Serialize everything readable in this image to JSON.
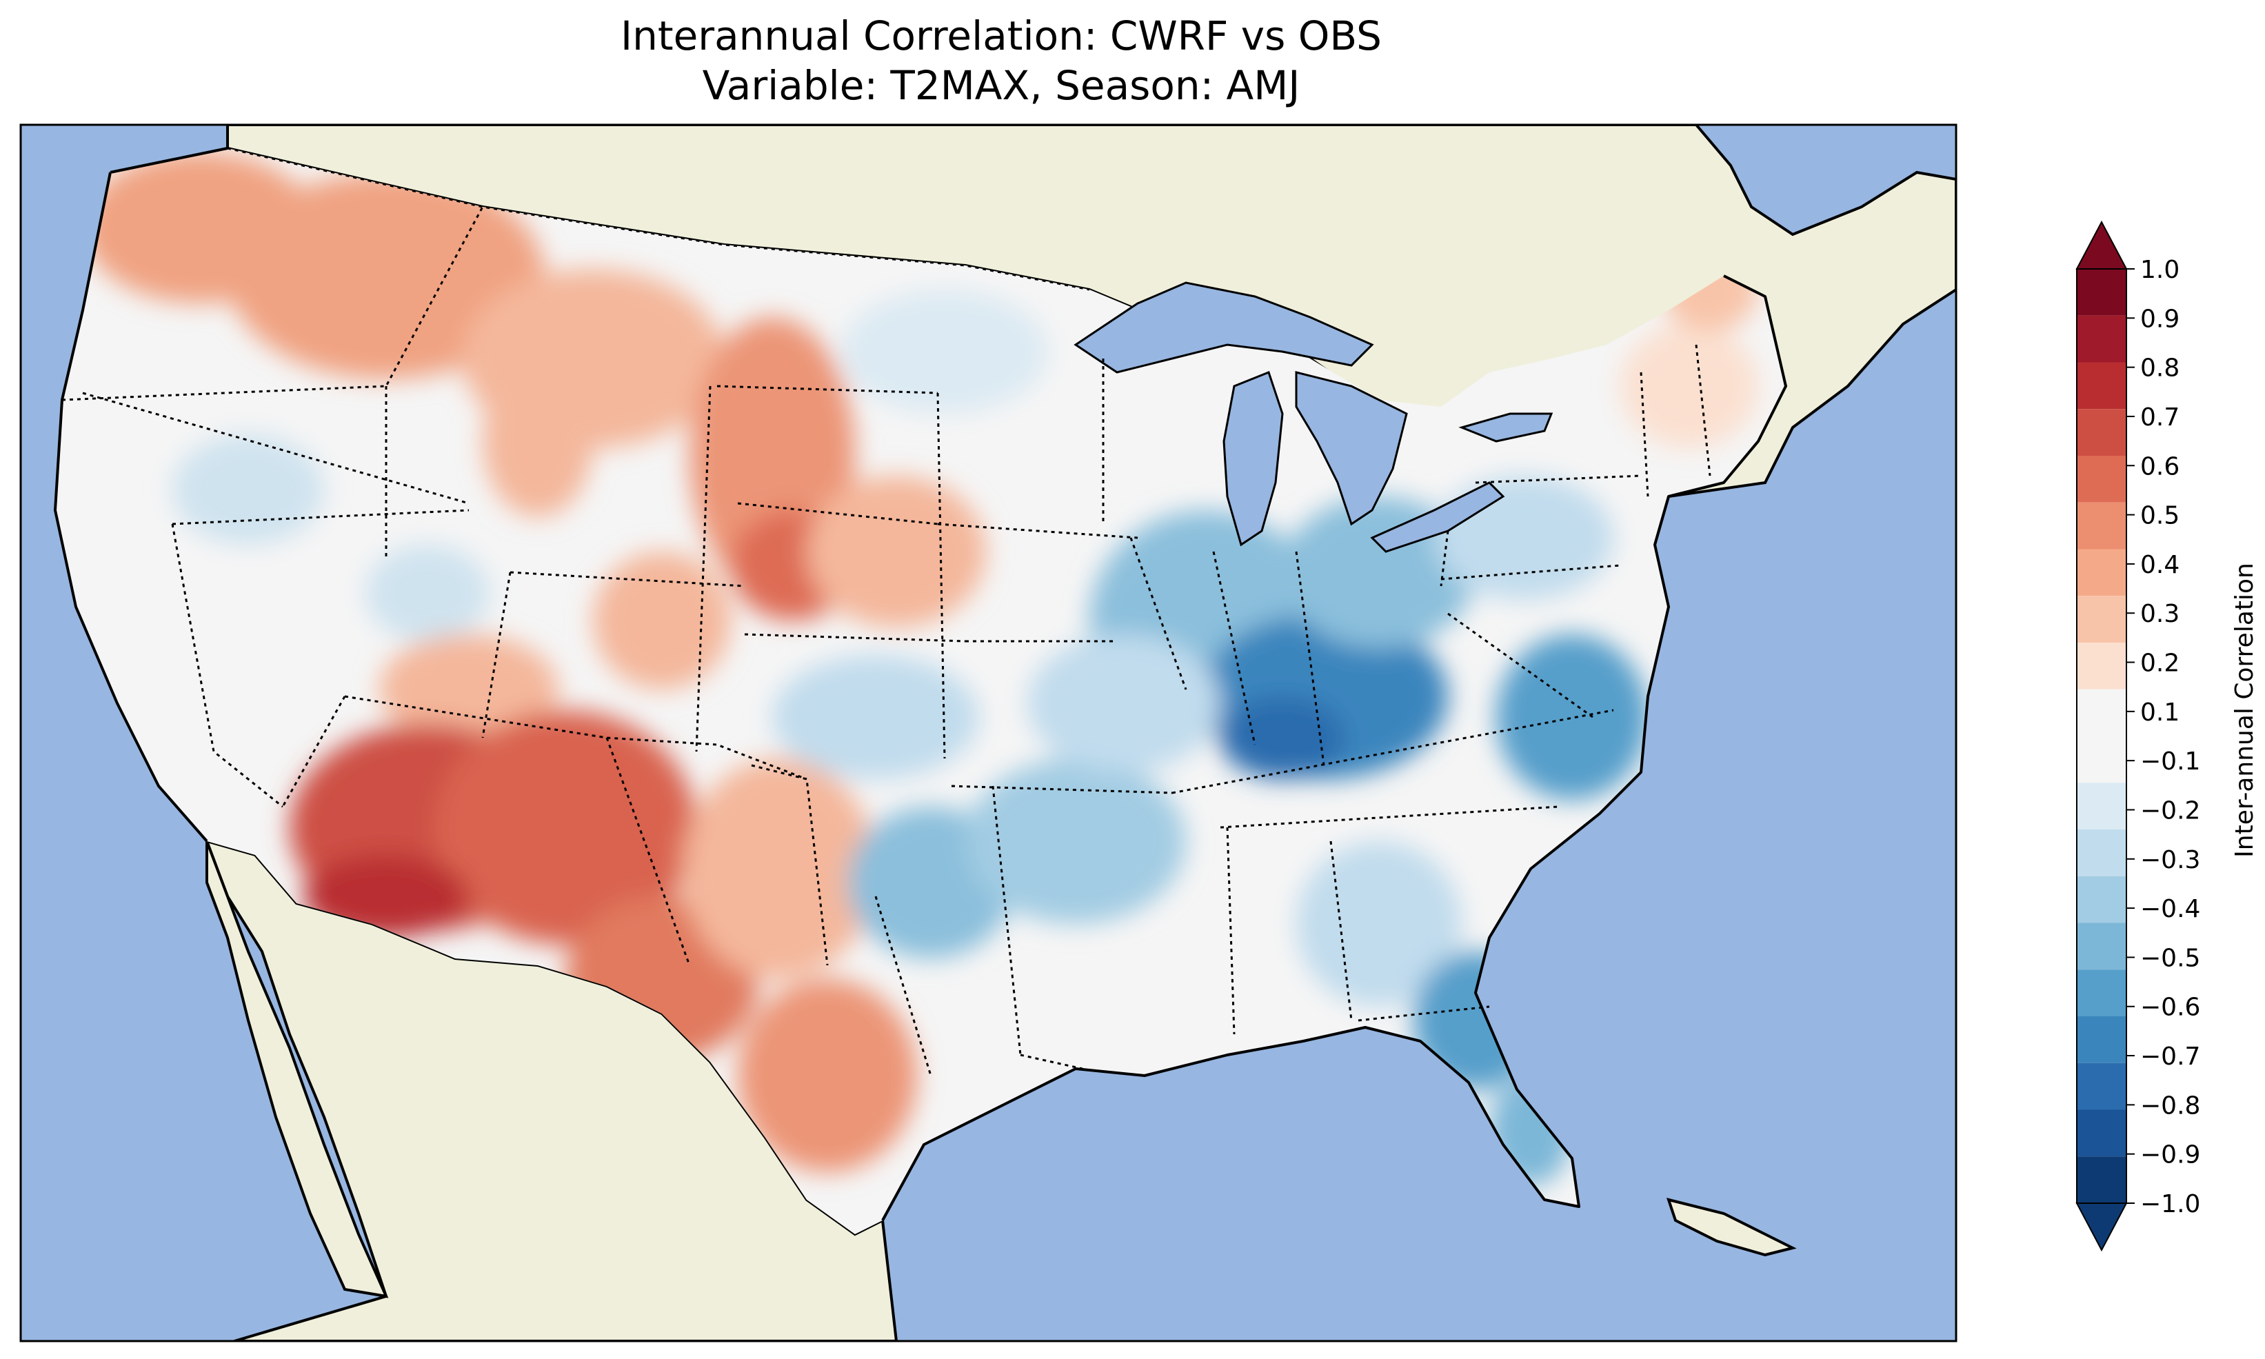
{
  "title": {
    "line1": "Interannual Correlation: CWRF vs OBS",
    "line2": "Variable: T2MAX, Season: AMJ"
  },
  "colors": {
    "ocean": "#97b6e1",
    "land": "#efefdb",
    "lakes": "#97b6e1"
  },
  "colorbar": {
    "label": "Inter-annual Correlation",
    "min": -1.0,
    "max": 1.0,
    "extend": "both",
    "ticks": [
      "1.0",
      "0.9",
      "0.8",
      "0.7",
      "0.6",
      "0.5",
      "0.4",
      "0.3",
      "0.2",
      "0.1",
      "−0.1",
      "−0.2",
      "−0.3",
      "−0.4",
      "−0.5",
      "−0.6",
      "−0.7",
      "−0.8",
      "−0.9",
      "−1.0"
    ],
    "bins": [
      {
        "from": 0.9,
        "to": 1.0,
        "color": "#7b0a20"
      },
      {
        "from": 0.8,
        "to": 0.9,
        "color": "#9f1a2a"
      },
      {
        "from": 0.7,
        "to": 0.8,
        "color": "#b92d30"
      },
      {
        "from": 0.6,
        "to": 0.7,
        "color": "#cd4f44"
      },
      {
        "from": 0.5,
        "to": 0.6,
        "color": "#de6c55"
      },
      {
        "from": 0.4,
        "to": 0.5,
        "color": "#ec8f70"
      },
      {
        "from": 0.3,
        "to": 0.4,
        "color": "#f4aa89"
      },
      {
        "from": 0.2,
        "to": 0.3,
        "color": "#f8c4a9"
      },
      {
        "from": 0.1,
        "to": 0.2,
        "color": "#fbe0d0"
      },
      {
        "from": -0.1,
        "to": 0.1,
        "color": "#f5f5f5"
      },
      {
        "from": -0.2,
        "to": -0.1,
        "color": "#dceaf3"
      },
      {
        "from": -0.3,
        "to": -0.2,
        "color": "#c1dced"
      },
      {
        "from": -0.4,
        "to": -0.3,
        "color": "#a2cce3"
      },
      {
        "from": -0.5,
        "to": -0.4,
        "color": "#7db7d8"
      },
      {
        "from": -0.6,
        "to": -0.5,
        "color": "#569fcb"
      },
      {
        "from": -0.7,
        "to": -0.6,
        "color": "#3b85bd"
      },
      {
        "from": -0.8,
        "to": -0.7,
        "color": "#2a6cae"
      },
      {
        "from": -0.9,
        "to": -0.8,
        "color": "#1b5497"
      },
      {
        "from": -1.0,
        "to": -0.9,
        "color": "#0d3a72"
      }
    ]
  }
}
